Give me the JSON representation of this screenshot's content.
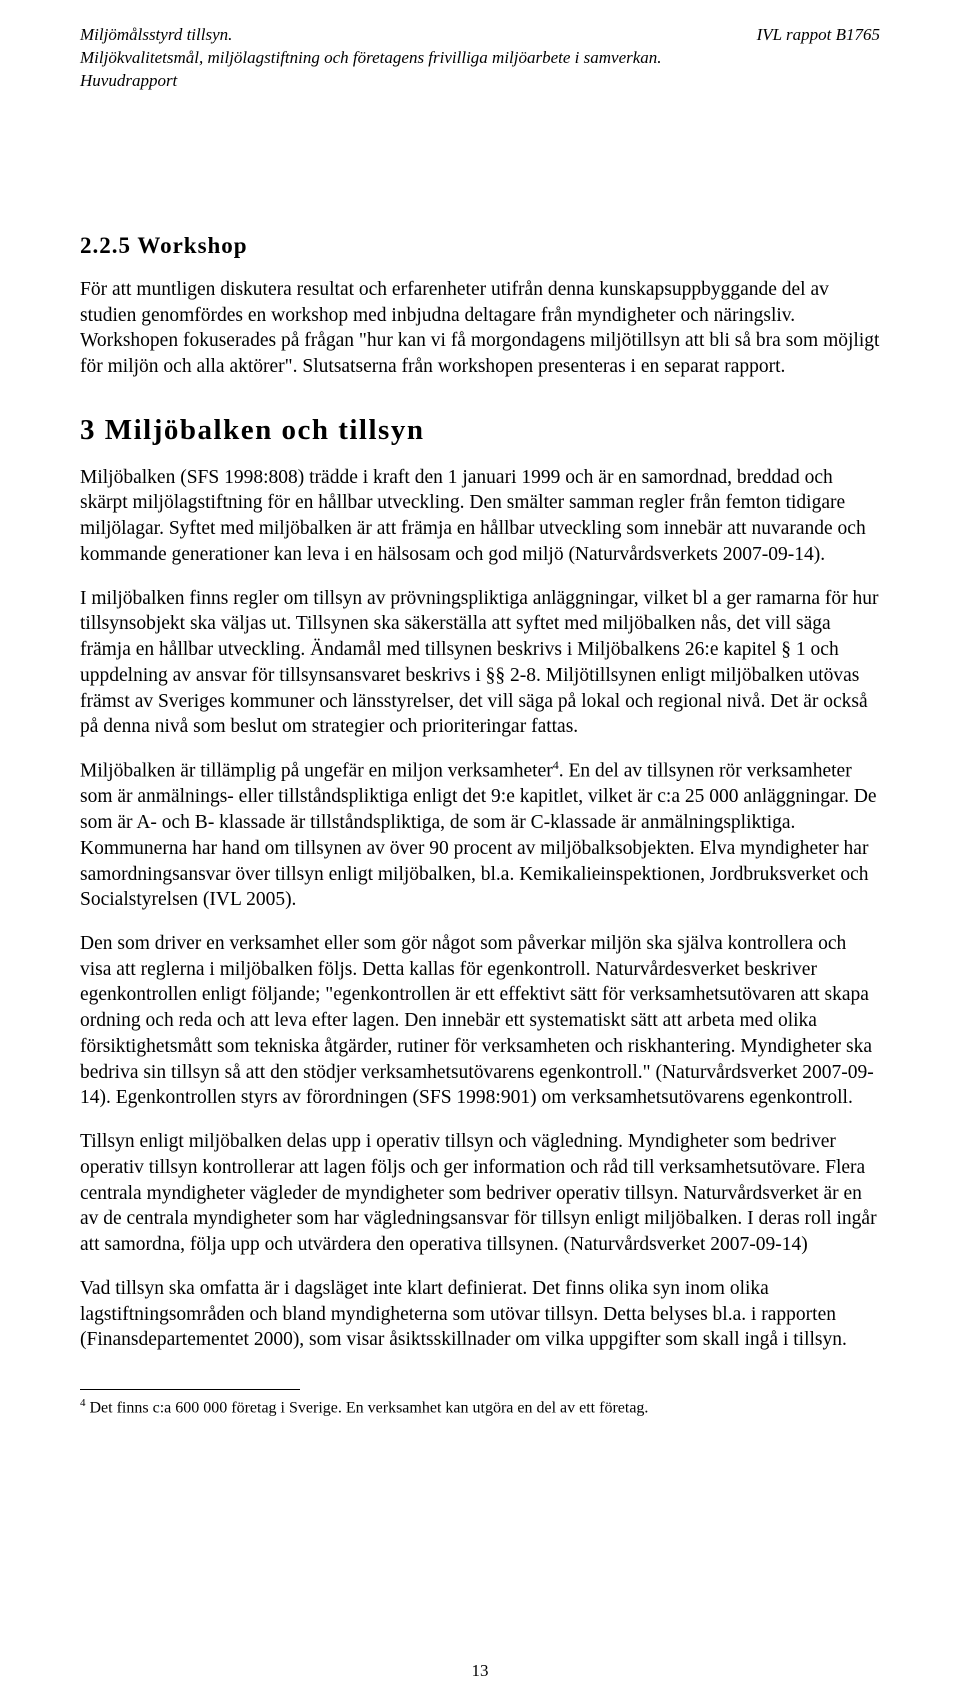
{
  "header": {
    "left_line1": "Miljömålsstyrd tillsyn.",
    "left_line2": "Miljökvalitetsmål, miljölagstiftning och företagens frivilliga miljöarbete i samverkan. Huvudrapport",
    "right": "IVL rappot B1765"
  },
  "section_225": {
    "heading": "2.2.5 Workshop",
    "p1": "För att muntligen diskutera resultat och erfarenheter utifrån denna kunskapsuppbyggande del av studien genomfördes en workshop med inbjudna deltagare från myndigheter och näringsliv. Workshopen fokuserades på frågan \"hur kan vi få morgondagens miljötillsyn att bli så bra som möjligt för miljön och alla aktörer\". Slutsatserna från workshopen presenteras i en separat rapport."
  },
  "section_3": {
    "heading": "3  Miljöbalken och tillsyn",
    "p1": "Miljöbalken (SFS 1998:808) trädde i kraft den 1 januari 1999 och är en samordnad, breddad och skärpt miljölagstiftning för en hållbar utveckling. Den smälter samman regler från femton tidigare miljölagar. Syftet med miljöbalken är att främja en hållbar utveckling som innebär att nuvarande och kommande generationer kan leva i en hälsosam och god miljö (Naturvårdsverkets 2007-09-14).",
    "p2": "I miljöbalken finns regler om tillsyn av prövningspliktiga anläggningar, vilket bl a ger ramarna för hur tillsynsobjekt ska väljas ut. Tillsynen ska säkerställa att syftet med miljöbalken nås, det vill säga främja en hållbar utveckling. Ändamål med tillsynen beskrivs i Miljöbalkens 26:e kapitel § 1 och uppdelning av ansvar för tillsynsansvaret beskrivs i §§ 2-8. Miljötillsynen enligt miljöbalken utövas främst av Sveriges kommuner och länsstyrelser, det vill säga på lokal och regional nivå. Det är också på denna nivå som beslut om strategier och prioriteringar fattas.",
    "p3_a": "Miljöbalken är tillämplig på ungefär en miljon verksamheter",
    "p3_fnmark": "4",
    "p3_b": ". En del av tillsynen rör verksamheter som är anmälnings- eller tillståndspliktiga enligt det 9:e kapitlet, vilket är c:a 25 000 anläggningar. De som är A- och B- klassade är tillståndspliktiga, de som är C-klassade är anmälningspliktiga. Kommunerna har hand om tillsynen av över 90 procent av miljöbalksobjekten. Elva myndigheter har samordningsansvar över tillsyn enligt miljöbalken, bl.a. Kemikalieinspektionen, Jordbruksverket och Socialstyrelsen (IVL 2005).",
    "p4": "Den som driver en verksamhet eller som gör något som påverkar miljön ska själva kontrollera och visa att reglerna i miljöbalken följs. Detta kallas för egenkontroll. Naturvårdesverket beskriver egenkontrollen enligt följande; \"egenkontrollen är ett effektivt sätt för verksamhetsutövaren att skapa ordning och reda och att leva efter lagen. Den innebär ett systematiskt sätt att arbeta med olika försiktighetsmått som tekniska åtgärder, rutiner för verksamheten och riskhantering. Myndigheter ska bedriva sin tillsyn så att den stödjer verksamhetsutövarens egenkontroll.\" (Naturvårdsverket 2007-09-14). Egenkontrollen styrs av förordningen (SFS 1998:901) om verksamhetsutövarens egenkontroll.",
    "p5": "Tillsyn enligt miljöbalken delas upp i operativ tillsyn och vägledning. Myndigheter som bedriver operativ tillsyn kontrollerar att lagen följs och ger information och råd till verksamhetsutövare. Flera centrala myndigheter vägleder de myndigheter som bedriver operativ tillsyn. Naturvårdsverket är en av de centrala myndigheter som har vägledningsansvar för tillsyn enligt miljöbalken. I deras roll ingår att samordna, följa upp och utvärdera den operativa tillsynen. (Naturvårdsverket 2007-09-14)",
    "p6": "Vad tillsyn ska omfatta är i dagsläget inte klart definierat. Det finns olika syn inom olika lagstiftningsområden och bland myndigheterna som utövar tillsyn. Detta belyses bl.a. i rapporten (Finansdepartementet 2000), som visar åsiktsskillnader om vilka uppgifter som skall ingå i tillsyn."
  },
  "footnote": {
    "mark": "4",
    "text": " Det finns c:a 600 000 företag i Sverige. En verksamhet kan utgöra en del av ett företag."
  },
  "page_number": "13"
}
